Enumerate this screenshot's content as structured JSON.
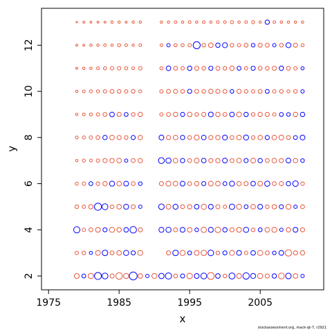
{
  "chart_data": {
    "type": "scatter",
    "title": "",
    "xlabel": "x",
    "ylabel": "y",
    "xlim": [
      1974,
      2014
    ],
    "ylim": [
      1.4,
      13.6
    ],
    "xticks": [
      1975,
      1985,
      1995,
      2005
    ],
    "yticks": [
      2,
      4,
      6,
      8,
      10,
      12
    ],
    "legend": "none",
    "grid": false,
    "marker": "open circle, area proportional to |residual|",
    "series": [
      {
        "sign": "negative",
        "color": "#0000ff"
      },
      {
        "sign": "positive",
        "color": "#e8553a"
      }
    ],
    "residuals": [
      [
        2,
        1.2,
        -0.8,
        1.5,
        -2.5,
        -1.8,
        0.9,
        2.2,
        1.4,
        -3.2,
        1.1,
        -0.6,
        1.3,
        -1.5,
        -2.0,
        0.8,
        -0.9,
        1.6,
        -1.2,
        -1.8,
        2.4,
        -1.1,
        0.7,
        -1.9,
        1.2,
        -2.1,
        -1.3,
        1.4,
        0.9,
        -1.0,
        1.8,
        -1.6,
        1.1,
        -0.6,
        0,
        0,
        0,
        0,
        0,
        -1.4,
        -1.8,
        0.5
      ],
      [
        3,
        0.6,
        0.7,
        -0.5,
        1.2,
        -1.6,
        0.8,
        1.1,
        -1.4,
        -0.9,
        1.3,
        0,
        0,
        0,
        0.9,
        -1.6,
        1.4,
        -0.8,
        1.2,
        1.5,
        -1.7,
        0.7,
        -0.9,
        1.3,
        -1.2,
        0.6,
        -1.1,
        1.4,
        0.8,
        -0.7,
        -1.2,
        2.1,
        0.9,
        1.0,
        0,
        0,
        0,
        0,
        0,
        0.6,
        -0.8,
        0.5
      ],
      [
        4,
        -2.0,
        0.6,
        0.8,
        1.2,
        -0.9,
        1.3,
        1.0,
        -1.1,
        -2.2,
        0.9,
        0,
        0,
        -1.3,
        -1.4,
        0.8,
        -1.2,
        1.1,
        -0.7,
        1.5,
        -1.3,
        1.6,
        -1.0,
        0.9,
        1.2,
        -1.4,
        0.7,
        -0.8,
        1.1,
        1.3,
        -0.6,
        1.0,
        -1.2,
        0.9,
        0,
        0,
        0,
        0,
        0,
        -0.5,
        0.4,
        0.3
      ],
      [
        5,
        0.7,
        0.6,
        1.0,
        -2.6,
        -1.8,
        0.7,
        1.1,
        -1.3,
        0.9,
        -0.6,
        0,
        0,
        -1.6,
        1.2,
        -1.3,
        0.8,
        1.0,
        -1.1,
        1.4,
        -1.2,
        0.9,
        0.6,
        -1.5,
        1.3,
        -0.8,
        1.1,
        -1.2,
        0.7,
        1.0,
        -0.9,
        1.3,
        -0.6,
        0.8,
        0,
        0,
        0,
        0,
        0,
        0.4,
        -0.3,
        0.5
      ],
      [
        6,
        0.5,
        0.6,
        -0.8,
        0.7,
        1.0,
        -1.3,
        1.1,
        -1.2,
        0.8,
        -0.7,
        0,
        0,
        0.9,
        1.3,
        1.1,
        -1.2,
        0.8,
        1.0,
        -0.9,
        1.2,
        1.1,
        -0.8,
        -1.3,
        1.0,
        0.9,
        -1.1,
        1.2,
        -1.4,
        0.8,
        0.9,
        -1.0,
        -1.6,
        0.7,
        0,
        0,
        0,
        0,
        0,
        0.5,
        0.3,
        0.4
      ],
      [
        7,
        0.3,
        0.5,
        0.4,
        0.6,
        0.9,
        1.0,
        1.1,
        -0.6,
        0.8,
        1.0,
        0,
        0,
        -1.8,
        -1.4,
        1.1,
        -1.0,
        0.8,
        1.2,
        -1.1,
        0.9,
        1.0,
        -1.2,
        0.8,
        1.1,
        -0.9,
        1.2,
        -1.0,
        0.8,
        1.1,
        0.9,
        -1.2,
        1.0,
        -0.7,
        0,
        0,
        0,
        0,
        0,
        0.3,
        0.4,
        0.3
      ],
      [
        8,
        0.4,
        0.5,
        0.6,
        0.8,
        -1.0,
        1.1,
        0.9,
        0.7,
        -0.9,
        1.0,
        0,
        0,
        -1.2,
        0.9,
        1.1,
        -1.0,
        0.8,
        1.3,
        -1.1,
        0.9,
        1.0,
        -1.2,
        0.8,
        1.1,
        -1.3,
        0.7,
        1.0,
        -0.9,
        1.1,
        1.2,
        0.8,
        -0.8,
        -1.2,
        0,
        0,
        0,
        0,
        0,
        -0.5,
        -0.4,
        0.3
      ],
      [
        9,
        0.3,
        0.4,
        0.5,
        0.6,
        0.8,
        -1.1,
        0.9,
        -0.8,
        0.7,
        1.0,
        0,
        0,
        0.6,
        0.8,
        1.0,
        -0.9,
        1.1,
        0.7,
        0.9,
        -1.2,
        1.0,
        0.8,
        -1.1,
        1.2,
        -1.0,
        0.7,
        1.0,
        0.9,
        0.6,
        -0.8,
        -0.7,
        1.0,
        -1.0,
        0,
        0,
        0,
        0,
        0,
        -0.6,
        0.3,
        -0.4
      ],
      [
        10,
        0.3,
        0.4,
        0.5,
        0.5,
        0.6,
        0.8,
        0.7,
        0.6,
        0.7,
        0.5,
        0,
        0,
        0.6,
        0.8,
        0.9,
        0.7,
        -0.9,
        0.8,
        0.7,
        1.0,
        0.9,
        0.8,
        -0.7,
        0.9,
        0.7,
        0.6,
        0.8,
        -0.8,
        0.6,
        0.7,
        0.5,
        0.7,
        -0.6,
        0,
        0,
        0,
        0,
        0,
        -0.9,
        -0.7,
        0.3
      ],
      [
        11,
        0.2,
        0.3,
        0.3,
        0.4,
        0.5,
        0.6,
        0.6,
        0.5,
        0.4,
        0.6,
        0,
        0,
        0.5,
        -1.1,
        0.8,
        0.6,
        -1.0,
        0.9,
        0.7,
        -0.9,
        0.8,
        0.7,
        1.0,
        -0.8,
        0.6,
        -0.9,
        0.8,
        0.7,
        0.9,
        -1.0,
        0.8,
        0.6,
        -0.5,
        0,
        0,
        0,
        0,
        0,
        0.4,
        0.3,
        -0.5
      ],
      [
        12,
        0.2,
        0.2,
        0.3,
        0.3,
        0.4,
        0.3,
        0.5,
        0.4,
        0.3,
        0.4,
        0,
        0,
        0.4,
        -0.6,
        0.5,
        0.5,
        0.6,
        -2.6,
        0.7,
        1.1,
        -1.0,
        -1.3,
        0.7,
        0.6,
        0.8,
        -0.7,
        0.9,
        0.8,
        -0.6,
        0.7,
        -1.3,
        0.9,
        0.5,
        0,
        0,
        0,
        0,
        0,
        0.3,
        0.2,
        -0.8
      ],
      [
        13,
        0.1,
        0.2,
        0.2,
        0.2,
        0.2,
        0.3,
        0.3,
        0.2,
        0.3,
        0.3,
        0,
        0,
        0.3,
        0.3,
        0.4,
        0.3,
        0.4,
        0.3,
        0.4,
        0.3,
        0.4,
        0.4,
        0.5,
        0.3,
        0.4,
        0.5,
        0.3,
        -1.0,
        0.4,
        0.3,
        0.3,
        0.3,
        0.3,
        0,
        0,
        0,
        0,
        0,
        0.3,
        0.2,
        0.2
      ]
    ],
    "residual_years_start": 1979
  },
  "credit": "stockassessment.org, mack-qt-7, r2921"
}
